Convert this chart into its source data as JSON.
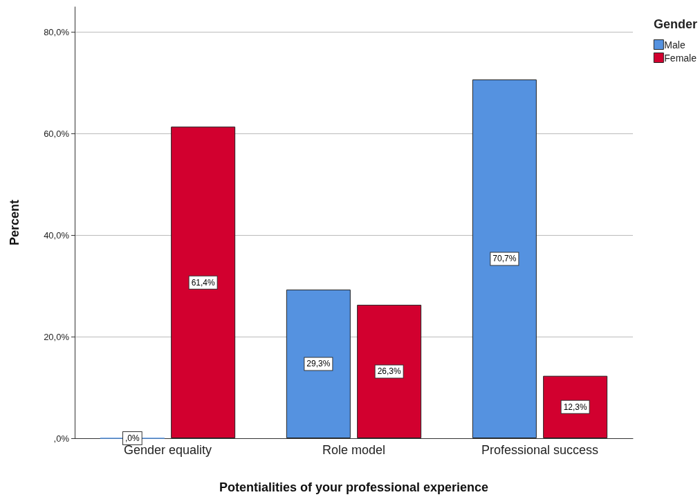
{
  "chart_data": {
    "type": "bar",
    "xlabel": "Potentialities of your professional experience",
    "ylabel": "Percent",
    "legend_title": "Gender",
    "categories": [
      "Gender equality",
      "Role model",
      "Professional success"
    ],
    "series": [
      {
        "name": "Male",
        "color": "#5592e0",
        "values": [
          0,
          29.3,
          70.7
        ],
        "value_labels": [
          ",0%",
          "29,3%",
          "70,7%"
        ]
      },
      {
        "name": "Female",
        "color": "#d2002f",
        "values": [
          61.4,
          26.3,
          12.3
        ],
        "value_labels": [
          "61,4%",
          "26,3%",
          "12,3%"
        ]
      }
    ],
    "ylim": [
      0,
      85
    ],
    "yticks": [
      {
        "value": 0,
        "label": ",0%"
      },
      {
        "value": 20,
        "label": "20,0%"
      },
      {
        "value": 40,
        "label": "40,0%"
      },
      {
        "value": 60,
        "label": "60,0%"
      },
      {
        "value": 80,
        "label": "80,0%"
      }
    ],
    "grid": "y",
    "legend": "top right"
  }
}
